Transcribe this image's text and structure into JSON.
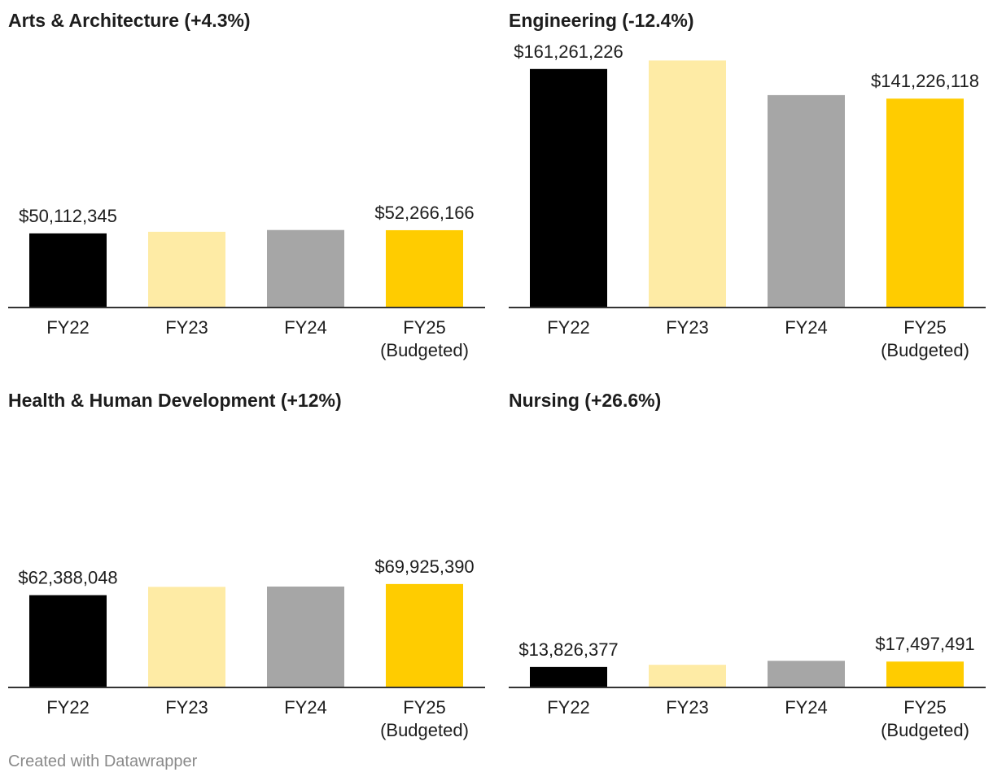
{
  "chart_data": [
    {
      "type": "bar",
      "title": "Arts & Architecture (+4.3%)",
      "categories": [
        [
          "FY22"
        ],
        [
          "FY23"
        ],
        [
          "FY24"
        ],
        [
          "FY25",
          "(Budgeted)"
        ]
      ],
      "values": [
        50112345,
        51200000,
        52400000,
        52266166
      ],
      "labels": [
        "$50,112,345",
        "",
        "",
        "$52,266,166"
      ],
      "colors": [
        "#000000",
        "#feeba5",
        "#a6a6a6",
        "#ffcc00"
      ],
      "ylim": [
        0,
        165000000
      ]
    },
    {
      "type": "bar",
      "title": "Engineering (-12.4%)",
      "categories": [
        [
          "FY22"
        ],
        [
          "FY23"
        ],
        [
          "FY24"
        ],
        [
          "FY25",
          "(Budgeted)"
        ]
      ],
      "values": [
        161261226,
        167000000,
        143600000,
        141226118
      ],
      "labels": [
        "$161,261,226",
        "",
        "",
        "$141,226,118"
      ],
      "colors": [
        "#000000",
        "#feeba5",
        "#a6a6a6",
        "#ffcc00"
      ],
      "ylim": [
        0,
        165000000
      ]
    },
    {
      "type": "bar",
      "title": "Health & Human Development (+12%)",
      "categories": [
        [
          "FY22"
        ],
        [
          "FY23"
        ],
        [
          "FY24"
        ],
        [
          "FY25",
          "(Budgeted)"
        ]
      ],
      "values": [
        62388048,
        68000000,
        68200000,
        69925390
      ],
      "labels": [
        "$62,388,048",
        "",
        "",
        "$69,925,390"
      ],
      "colors": [
        "#000000",
        "#feeba5",
        "#a6a6a6",
        "#ffcc00"
      ],
      "ylim": [
        0,
        165000000
      ]
    },
    {
      "type": "bar",
      "title": "Nursing (+26.6%)",
      "categories": [
        [
          "FY22"
        ],
        [
          "FY23"
        ],
        [
          "FY24"
        ],
        [
          "FY25",
          "(Budgeted)"
        ]
      ],
      "values": [
        13826377,
        15300000,
        18000000,
        17497491
      ],
      "labels": [
        "$13,826,377",
        "",
        "",
        "$17,497,491"
      ],
      "colors": [
        "#000000",
        "#feeba5",
        "#a6a6a6",
        "#ffcc00"
      ],
      "ylim": [
        0,
        165000000
      ]
    }
  ],
  "footer": {
    "credit": "Created with Datawrapper"
  }
}
